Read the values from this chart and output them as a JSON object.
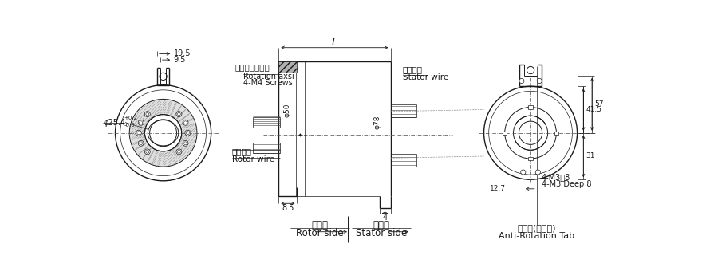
{
  "bg_color": "#ffffff",
  "lc": "#1a1a1a",
  "figsize": [
    8.8,
    3.5
  ],
  "dpi": 100,
  "labels": {
    "rotor_side": "Rotor side",
    "rotor_side_cn": "转子边",
    "stator_side": "Stator side",
    "stator_side_cn": "定子边",
    "anti_rot": "Anti-Rotation Tab",
    "anti_rot_cn": "止转片(可调节)",
    "rotor_wire": "Rotor wire",
    "rotor_wire_cn": "转子出线",
    "stator_wire": "Stator wire",
    "stator_wire_cn": "定子出线",
    "m4_screws": "4-M4 Screws",
    "rotation_axsi": "Rotation axsi",
    "rotation_axsi_cn": "转子螺钉固定孔",
    "m3_deep": "4-M3 Deep 8",
    "m3_deep_cn": "4-M3深8",
    "dim_19_5": "19.5",
    "dim_9_5": "9.5",
    "dim_phi25": "φ25.4",
    "dim_phi25_sup": "+0.2",
    "dim_phi25_sub": "-0.0",
    "dim_8_5": "8.5",
    "dim_4": "4",
    "dim_phi50": "φ50",
    "dim_phi78": "φ78",
    "dim_L": "L",
    "dim_12_7": "12.7",
    "dim_41_5": "41.5",
    "dim_57": "57",
    "dim_31": "31"
  }
}
